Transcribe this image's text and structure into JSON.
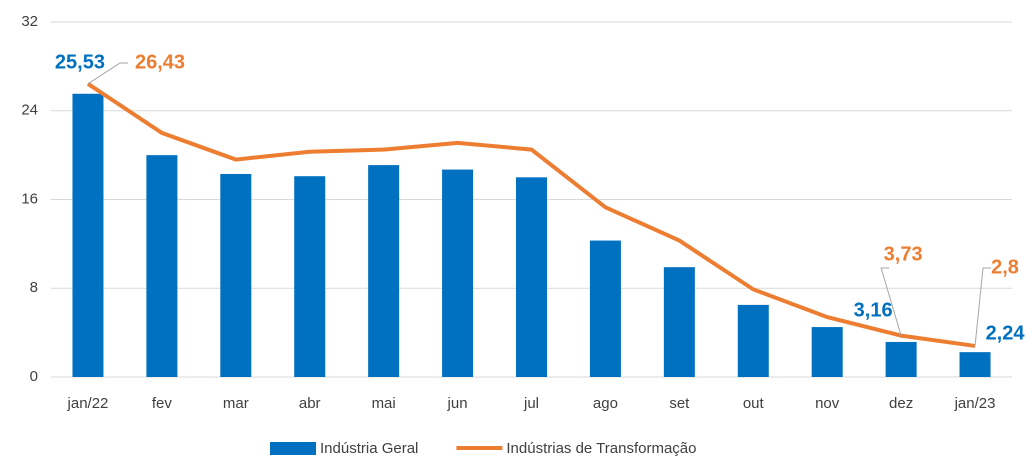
{
  "chart_data": {
    "type": "bar_line",
    "categories": [
      "jan/22",
      "fev",
      "mar",
      "abr",
      "mai",
      "jun",
      "jul",
      "ago",
      "set",
      "out",
      "nov",
      "dez",
      "jan/23"
    ],
    "series": [
      {
        "name": "Indústria Geral",
        "type": "bar",
        "color": "#0070c0",
        "values": [
          25.53,
          20.0,
          18.3,
          18.1,
          19.1,
          18.7,
          18.0,
          12.3,
          9.9,
          6.5,
          4.5,
          3.16,
          2.24
        ],
        "value_labels": [
          "25,53",
          null,
          null,
          null,
          null,
          null,
          null,
          null,
          null,
          null,
          null,
          "3,16",
          "2,24"
        ]
      },
      {
        "name": "Indústrias de Transformação",
        "type": "line",
        "color": "#ed7d31",
        "values": [
          26.43,
          22.0,
          19.6,
          20.3,
          20.5,
          21.1,
          20.5,
          15.3,
          12.3,
          7.9,
          5.4,
          3.73,
          2.8
        ],
        "value_labels": [
          "26,43",
          null,
          null,
          null,
          null,
          null,
          null,
          null,
          null,
          null,
          null,
          "3,73",
          "2,8"
        ]
      }
    ],
    "ylim": [
      0,
      32
    ],
    "yticks": [
      0,
      8,
      16,
      24,
      32
    ],
    "grid": true,
    "legend": "bottom"
  }
}
